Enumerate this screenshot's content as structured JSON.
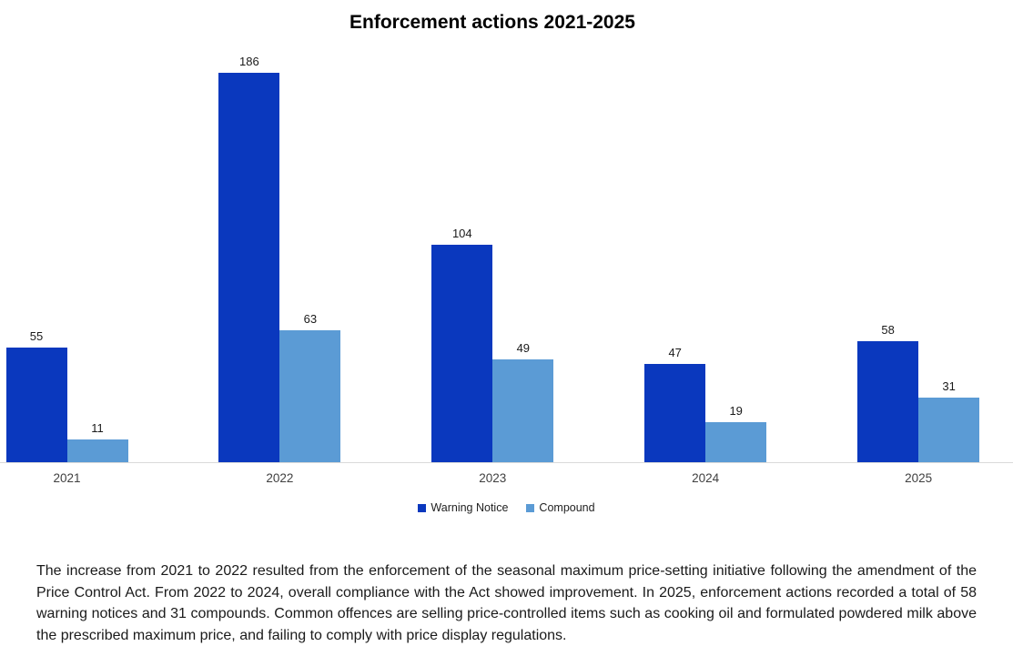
{
  "title": "Enforcement actions 2021-2025",
  "chart_data": {
    "type": "bar",
    "title": "Enforcement actions 2021-2025",
    "categories": [
      "2021",
      "2022",
      "2023",
      "2024",
      "2025"
    ],
    "series": [
      {
        "name": "Warning Notice",
        "color": "#0A38BE",
        "values": [
          55,
          186,
          104,
          47,
          58
        ]
      },
      {
        "name": "Compound",
        "color": "#5B9BD5",
        "values": [
          11,
          63,
          49,
          19,
          31
        ]
      }
    ],
    "xlabel": "",
    "ylabel": "",
    "ylim": [
      0,
      200
    ],
    "grid": false,
    "data_labels": true,
    "legend_position": "bottom",
    "axis_line_color": "#d9d9d9"
  },
  "notes": "The increase from 2021 to 2022 resulted from the enforcement of  the seasonal maximum price-setting initiative following the amendment of the Price Control Act. From 2022 to 2024, overall compliance with the Act showed improvement. In 2025, enforcement actions recorded a total of 58 warning notices and 31 compounds. Common offences are selling price-controlled items such as cooking oil and formulated powdered milk above the prescribed maximum price, and failing to comply with price display regulations."
}
